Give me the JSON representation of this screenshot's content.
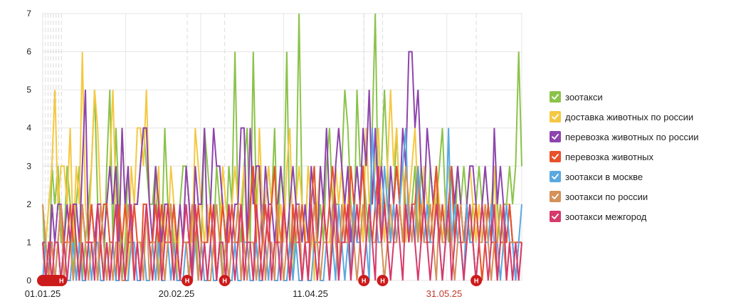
{
  "chart_data": {
    "type": "line",
    "x_start": "01.01.25",
    "x_end": "29.06.25",
    "xlim": [
      "01.01.25",
      "29.06.25"
    ],
    "ylim": [
      0,
      7
    ],
    "y_ticks": [
      "0",
      "1",
      "2",
      "3",
      "4",
      "5",
      "6",
      "7"
    ],
    "x_ticks": [
      {
        "label": "01.01.25",
        "date": "01.01.25",
        "color": "#222222"
      },
      {
        "label": "20.02.25",
        "date": "20.02.25",
        "color": "#222222"
      },
      {
        "label": "11.04.25",
        "date": "11.04.25",
        "color": "#222222"
      },
      {
        "label": "31.05.25",
        "date": "31.05.25",
        "color": "#c0392b"
      }
    ],
    "grid": true,
    "legend_position": "right",
    "holiday_markers": {
      "label": "Н",
      "color": "#cc1b1b",
      "dates": [
        "01.01.25",
        "02.01.25",
        "03.01.25",
        "04.01.25",
        "05.01.25",
        "06.01.25",
        "07.01.25",
        "08.01.25",
        "24.02.25",
        "10.03.25",
        "01.05.25",
        "08.05.25",
        "12.06.25"
      ]
    },
    "series": [
      {
        "name": "зоотакси",
        "color": "#8bc34a",
        "values": [
          2,
          0,
          0,
          3,
          2,
          3,
          1,
          1,
          3,
          2,
          0,
          2,
          3,
          0,
          1,
          2,
          3,
          5,
          2,
          1,
          0,
          3,
          5,
          1,
          4,
          2,
          0,
          1,
          3,
          1,
          2,
          2,
          3,
          4,
          3,
          2,
          2,
          3,
          0,
          1,
          4,
          2,
          2,
          1,
          0,
          2,
          3,
          3,
          2,
          1,
          2,
          0,
          1,
          4,
          3,
          2,
          1,
          3,
          2,
          0,
          1,
          3,
          2,
          6,
          2,
          1,
          3,
          4,
          1,
          6,
          2,
          3,
          1,
          2,
          3,
          2,
          4,
          1,
          3,
          2,
          6,
          1,
          0,
          2,
          7,
          2,
          1,
          3,
          2,
          3,
          1,
          2,
          1,
          3,
          4,
          2,
          2,
          2,
          3,
          5,
          4,
          2,
          1,
          5,
          3,
          3,
          2,
          1,
          4,
          7,
          2,
          3,
          5,
          3,
          1,
          2,
          4,
          2,
          3,
          2,
          1,
          2,
          3,
          1,
          3,
          2,
          1,
          3,
          2,
          2,
          3,
          4,
          2,
          1,
          3,
          1,
          3,
          2,
          3,
          2,
          1,
          2,
          2,
          3,
          2,
          3,
          2,
          1,
          3,
          2,
          1,
          2,
          2,
          3,
          2,
          3,
          6,
          3
        ]
      },
      {
        "name": "доставка животных по россии",
        "color": "#f5c842",
        "values": [
          1,
          1,
          2,
          3,
          5,
          2,
          3,
          3,
          2,
          4,
          1,
          3,
          2,
          6,
          2,
          1,
          3,
          5,
          4,
          2,
          1,
          2,
          3,
          5,
          2,
          1,
          4,
          2,
          0,
          3,
          2,
          4,
          4,
          3,
          5,
          2,
          1,
          2,
          3,
          0,
          2,
          1,
          3,
          2,
          0,
          2,
          1,
          3,
          2,
          1,
          4,
          3,
          2,
          1,
          2,
          1,
          2,
          0,
          1,
          3,
          2,
          1,
          2,
          3,
          2,
          2,
          3,
          1,
          2,
          3,
          1,
          4,
          2,
          2,
          3,
          2,
          3,
          1,
          2,
          1,
          3,
          4,
          1,
          2,
          3,
          2,
          1,
          3,
          2,
          0,
          2,
          3,
          2,
          1,
          1,
          2,
          3,
          2,
          3,
          1,
          2,
          3,
          2,
          3,
          2,
          1,
          4,
          2,
          2,
          3,
          4,
          2,
          1,
          3,
          5,
          3,
          4,
          2,
          3,
          1,
          2,
          3,
          4,
          2,
          1,
          3,
          2,
          2,
          1,
          3,
          2,
          1,
          2,
          3,
          1,
          2,
          3,
          2,
          1,
          2,
          3,
          2,
          1,
          2,
          1,
          2,
          1,
          2,
          3,
          1,
          2,
          1,
          2,
          2,
          1,
          1,
          1,
          1
        ]
      },
      {
        "name": "перевозка животных по россии",
        "color": "#8e44ad",
        "values": [
          1,
          1,
          0,
          2,
          1,
          2,
          2,
          1,
          2,
          1,
          2,
          2,
          1,
          3,
          5,
          1,
          2,
          1,
          2,
          2,
          1,
          2,
          3,
          2,
          3,
          1,
          4,
          2,
          3,
          1,
          2,
          2,
          3,
          4,
          4,
          2,
          1,
          3,
          2,
          1,
          2,
          2,
          1,
          2,
          1,
          2,
          1,
          3,
          2,
          0,
          3,
          2,
          2,
          4,
          1,
          2,
          4,
          3,
          3,
          2,
          1,
          2,
          1,
          2,
          2,
          4,
          4,
          1,
          4,
          2,
          3,
          3,
          1,
          3,
          2,
          2,
          1,
          2,
          3,
          2,
          1,
          2,
          3,
          2,
          2,
          1,
          2,
          1,
          3,
          2,
          1,
          3,
          2,
          4,
          2,
          1,
          3,
          4,
          3,
          2,
          3,
          1,
          2,
          3,
          2,
          4,
          3,
          5,
          2,
          4,
          2,
          3,
          2,
          1,
          3,
          2,
          3,
          2,
          4,
          3,
          6,
          6,
          4,
          5,
          3,
          2,
          4,
          3,
          2,
          3,
          1,
          2,
          1,
          2,
          3,
          2,
          3,
          2,
          1,
          2,
          3,
          3,
          2,
          1,
          2,
          3,
          2,
          1,
          4,
          2,
          3,
          2,
          1,
          2,
          1,
          0,
          1,
          1
        ]
      },
      {
        "name": "перевозка животных",
        "color": "#e8512a",
        "values": [
          1,
          0,
          1,
          1,
          0,
          1,
          2,
          1,
          1,
          2,
          1,
          0,
          1,
          2,
          1,
          1,
          2,
          1,
          0,
          1,
          2,
          2,
          1,
          1,
          0,
          2,
          1,
          2,
          1,
          1,
          2,
          1,
          0,
          2,
          2,
          1,
          1,
          2,
          1,
          2,
          1,
          1,
          1,
          2,
          1,
          0,
          1,
          1,
          1,
          2,
          1,
          2,
          1,
          1,
          1,
          2,
          1,
          0,
          1,
          2,
          1,
          1,
          2,
          1,
          1,
          2,
          1,
          1,
          2,
          3,
          1,
          0,
          1,
          2,
          1,
          2,
          3,
          1,
          1,
          2,
          1,
          0,
          2,
          1,
          1,
          2,
          1,
          1,
          2,
          3,
          1,
          1,
          2,
          1,
          2,
          3,
          2,
          1,
          1,
          2,
          1,
          3,
          2,
          1,
          2,
          3,
          1,
          2,
          1,
          2,
          3,
          1,
          2,
          1,
          1,
          2,
          3,
          2,
          1,
          2,
          1,
          2,
          2,
          3,
          1,
          2,
          1,
          1,
          2,
          3,
          1,
          2,
          1,
          2,
          3,
          1,
          2,
          1,
          1,
          2,
          1,
          1,
          2,
          1,
          0,
          1,
          2,
          1,
          1,
          0,
          1,
          1,
          1,
          2,
          1,
          1,
          1,
          1
        ]
      },
      {
        "name": "зоотакси в москве",
        "color": "#5aa9e0",
        "values": [
          0,
          1,
          0,
          0,
          1,
          1,
          0,
          1,
          0,
          0,
          1,
          0,
          1,
          0,
          0,
          1,
          0,
          1,
          1,
          0,
          0,
          1,
          0,
          1,
          0,
          0,
          1,
          0,
          0,
          1,
          1,
          0,
          0,
          1,
          0,
          0,
          1,
          0,
          1,
          0,
          0,
          1,
          0,
          1,
          0,
          0,
          0,
          1,
          0,
          0,
          1,
          0,
          1,
          0,
          0,
          1,
          0,
          0,
          1,
          0,
          1,
          0,
          0,
          1,
          0,
          0,
          1,
          1,
          0,
          0,
          1,
          0,
          0,
          1,
          0,
          1,
          0,
          0,
          1,
          0,
          0,
          1,
          0,
          1,
          0,
          0,
          1,
          0,
          0,
          1,
          1,
          0,
          0,
          1,
          0,
          1,
          0,
          2,
          1,
          0,
          1,
          0,
          2,
          1,
          1,
          2,
          1,
          0,
          4,
          2,
          1,
          1,
          3,
          2,
          1,
          2,
          1,
          2,
          3,
          4,
          1,
          2,
          1,
          3,
          2,
          1,
          2,
          1,
          1,
          2,
          1,
          0,
          1,
          4,
          1,
          2,
          1,
          1,
          0,
          2,
          1,
          1,
          0,
          1,
          2,
          1,
          1,
          2,
          1,
          1,
          0,
          1,
          2,
          1,
          1,
          0,
          1,
          2
        ]
      },
      {
        "name": "зоотакси по россии",
        "color": "#d4915a",
        "values": [
          2,
          1,
          0,
          1,
          0,
          1,
          2,
          0,
          1,
          1,
          0,
          1,
          0,
          2,
          1,
          0,
          1,
          1,
          0,
          2,
          1,
          0,
          1,
          0,
          1,
          1,
          0,
          0,
          2,
          1,
          0,
          1,
          1,
          0,
          2,
          0,
          1,
          1,
          0,
          1,
          0,
          1,
          2,
          0,
          1,
          0,
          1,
          1,
          0,
          2,
          1,
          0,
          1,
          1,
          0,
          0,
          1,
          2,
          1,
          0,
          1,
          0,
          1,
          1,
          2,
          0,
          1,
          0,
          1,
          1,
          0,
          1,
          2,
          0,
          1,
          1,
          0,
          2,
          1,
          0,
          1,
          0,
          1,
          1,
          2,
          0,
          1,
          0,
          1,
          2,
          1,
          0,
          1,
          1,
          0,
          2,
          1,
          0,
          2,
          1,
          1,
          2,
          1,
          0,
          1,
          2,
          1,
          2,
          1,
          1,
          2,
          1,
          0,
          1,
          2,
          1,
          1,
          2,
          1,
          3,
          2,
          1,
          2,
          1,
          2,
          1,
          1,
          2,
          1,
          0,
          2,
          1,
          1,
          2,
          1,
          0,
          1,
          2,
          1,
          1,
          2,
          1,
          0,
          1,
          1,
          2,
          1,
          0,
          1,
          1,
          2,
          1,
          0,
          1,
          1,
          1,
          0,
          1
        ]
      },
      {
        "name": "зоотакси межгород",
        "color": "#d63a6b",
        "values": [
          1,
          0,
          1,
          0,
          1,
          1,
          0,
          1,
          0,
          1,
          2,
          1,
          0,
          1,
          0,
          1,
          1,
          0,
          2,
          1,
          0,
          1,
          0,
          1,
          2,
          0,
          1,
          0,
          1,
          2,
          0,
          1,
          0,
          1,
          2,
          1,
          0,
          1,
          2,
          0,
          1,
          2,
          1,
          0,
          1,
          0,
          1,
          2,
          1,
          0,
          2,
          1,
          0,
          1,
          0,
          1,
          2,
          0,
          1,
          1,
          0,
          2,
          1,
          0,
          1,
          2,
          0,
          1,
          1,
          0,
          2,
          1,
          0,
          1,
          2,
          0,
          1,
          1,
          0,
          2,
          1,
          0,
          1,
          2,
          1,
          0,
          1,
          0,
          2,
          1,
          0,
          1,
          2,
          1,
          0,
          1,
          2,
          0,
          1,
          1,
          2,
          0,
          1,
          2,
          1,
          0,
          1,
          2,
          1,
          0,
          3,
          1,
          2,
          1,
          0,
          1,
          2,
          1,
          0,
          2,
          1,
          2,
          1,
          0,
          1,
          2,
          1,
          0,
          1,
          2,
          1,
          0,
          1,
          2,
          0,
          1,
          2,
          1,
          0,
          1,
          2,
          1,
          0,
          1,
          2,
          1,
          0,
          1,
          2,
          0,
          1,
          2,
          0,
          1,
          0,
          1,
          0,
          1
        ]
      }
    ]
  }
}
